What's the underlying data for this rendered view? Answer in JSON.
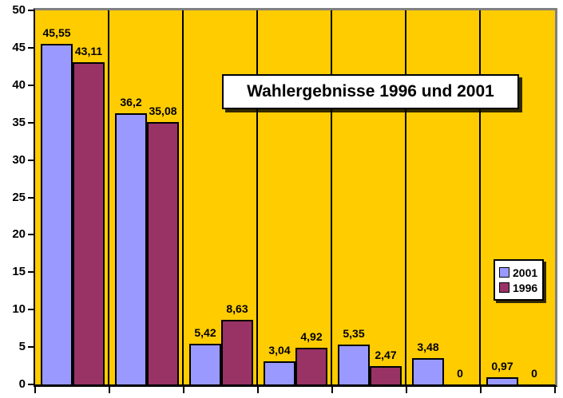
{
  "title": "Wahlergebnisse 1996 und 2001",
  "legend": {
    "position": "middle-right",
    "items": [
      {
        "label": "2001",
        "color": "#9999FF"
      },
      {
        "label": "1996",
        "color": "#993366"
      }
    ]
  },
  "colors": {
    "plot_background": "#FFCC00",
    "outer_background": "#FFFFFF",
    "series_2001": "#9999FF",
    "series_1996": "#993366",
    "axis": "#000000",
    "plot_border_gray": "#808080",
    "label_text": "#000000"
  },
  "y_axis": {
    "min": 0,
    "max": 50,
    "step": 5
  },
  "x_axis": {
    "labels_visible": false,
    "category_count": 7,
    "tick_marks": 8
  },
  "chart_data": {
    "type": "bar",
    "title": "Wahlergebnisse 1996 und 2001",
    "categories": [
      "",
      "",
      "",
      "",
      "",
      "",
      ""
    ],
    "series": [
      {
        "name": "2001",
        "color": "#9999FF",
        "values": [
          45.55,
          36.2,
          5.42,
          3.04,
          5.35,
          3.48,
          0.97
        ],
        "labels": [
          "45,55",
          "36,2",
          "5,42",
          "3,04",
          "5,35",
          "3,48",
          "0,97"
        ]
      },
      {
        "name": "1996",
        "color": "#993366",
        "values": [
          43.11,
          35.08,
          8.63,
          4.92,
          2.47,
          0,
          0
        ],
        "labels": [
          "43,11",
          "35,08",
          "8,63",
          "4,92",
          "2,47",
          "0",
          "0"
        ]
      }
    ],
    "ylim": [
      0,
      50
    ],
    "y_ticks": [
      0,
      5,
      10,
      15,
      20,
      25,
      30,
      35,
      40,
      45,
      50
    ],
    "grid": "vertical-category-separators",
    "legend_position": "middle-right",
    "data_labels": true,
    "xlabel": "",
    "ylabel": ""
  }
}
